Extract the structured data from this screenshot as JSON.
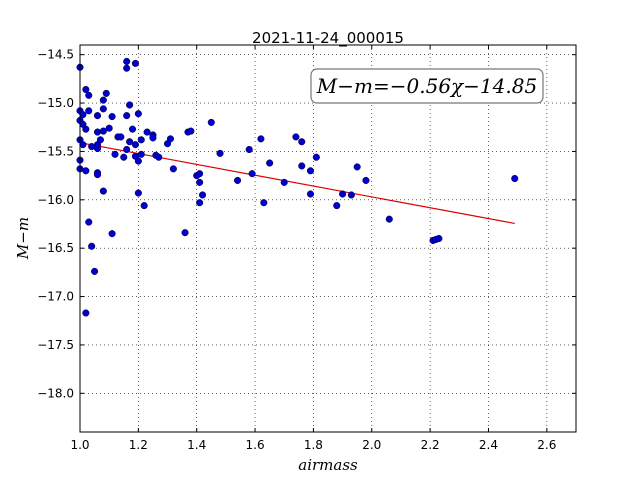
{
  "chart_data": {
    "type": "scatter",
    "title": "2021-11-24_000015",
    "xlabel": "airmass",
    "ylabel": "M−m",
    "xlim": [
      1.0,
      2.7
    ],
    "ylim": [
      -18.4,
      -14.4
    ],
    "y_inverted": true,
    "xticks": [
      "1.0",
      "1.2",
      "1.4",
      "1.6",
      "1.8",
      "2.0",
      "2.2",
      "2.4",
      "2.6"
    ],
    "yticks": [
      "−14.5",
      "−15.0",
      "−15.5",
      "−16.0",
      "−16.5",
      "−17.0",
      "−17.5",
      "−18.0"
    ],
    "grid": true,
    "annotation": "M−m=−0.56χ−14.85",
    "point_color": "#0000cc",
    "fit_color": "#dd0000",
    "fit_line": {
      "slope": -0.56,
      "intercept": -14.85,
      "x_range": [
        1.0,
        2.49
      ]
    },
    "points": [
      [
        1.0,
        -14.63
      ],
      [
        1.0,
        -15.08
      ],
      [
        1.0,
        -15.18
      ],
      [
        1.0,
        -15.38
      ],
      [
        1.0,
        -15.59
      ],
      [
        1.0,
        -15.68
      ],
      [
        1.01,
        -15.12
      ],
      [
        1.01,
        -15.22
      ],
      [
        1.01,
        -15.43
      ],
      [
        1.02,
        -15.7
      ],
      [
        1.02,
        -14.86
      ],
      [
        1.02,
        -15.27
      ],
      [
        1.03,
        -14.92
      ],
      [
        1.03,
        -15.08
      ],
      [
        1.02,
        -17.17
      ],
      [
        1.03,
        -16.23
      ],
      [
        1.04,
        -16.48
      ],
      [
        1.04,
        -15.45
      ],
      [
        1.05,
        -16.74
      ],
      [
        1.06,
        -15.13
      ],
      [
        1.06,
        -15.3
      ],
      [
        1.06,
        -15.43
      ],
      [
        1.06,
        -15.47
      ],
      [
        1.06,
        -15.72
      ],
      [
        1.06,
        -15.74
      ],
      [
        1.07,
        -15.38
      ],
      [
        1.08,
        -14.97
      ],
      [
        1.08,
        -15.06
      ],
      [
        1.08,
        -15.29
      ],
      [
        1.08,
        -15.91
      ],
      [
        1.09,
        -14.9
      ],
      [
        1.1,
        -15.26
      ],
      [
        1.11,
        -15.14
      ],
      [
        1.11,
        -16.35
      ],
      [
        1.12,
        -15.53
      ],
      [
        1.13,
        -15.35
      ],
      [
        1.14,
        -15.35
      ],
      [
        1.15,
        -15.56
      ],
      [
        1.16,
        -14.57
      ],
      [
        1.16,
        -14.64
      ],
      [
        1.16,
        -15.13
      ],
      [
        1.16,
        -15.48
      ],
      [
        1.17,
        -15.02
      ],
      [
        1.17,
        -15.4
      ],
      [
        1.18,
        -15.27
      ],
      [
        1.19,
        -15.43
      ],
      [
        1.19,
        -15.55
      ],
      [
        1.19,
        -14.59
      ],
      [
        1.2,
        -15.11
      ],
      [
        1.2,
        -15.6
      ],
      [
        1.2,
        -15.93
      ],
      [
        1.21,
        -15.53
      ],
      [
        1.21,
        -15.38
      ],
      [
        1.22,
        -16.06
      ],
      [
        1.23,
        -15.3
      ],
      [
        1.25,
        -15.33
      ],
      [
        1.25,
        -15.36
      ],
      [
        1.26,
        -15.54
      ],
      [
        1.27,
        -15.56
      ],
      [
        1.3,
        -15.42
      ],
      [
        1.31,
        -15.37
      ],
      [
        1.32,
        -15.68
      ],
      [
        1.36,
        -16.34
      ],
      [
        1.37,
        -15.3
      ],
      [
        1.38,
        -15.29
      ],
      [
        1.4,
        -15.75
      ],
      [
        1.41,
        -15.73
      ],
      [
        1.41,
        -15.82
      ],
      [
        1.41,
        -16.03
      ],
      [
        1.42,
        -15.95
      ],
      [
        1.45,
        -15.2
      ],
      [
        1.48,
        -15.52
      ],
      [
        1.54,
        -15.8
      ],
      [
        1.58,
        -15.48
      ],
      [
        1.59,
        -15.73
      ],
      [
        1.62,
        -15.37
      ],
      [
        1.63,
        -16.03
      ],
      [
        1.65,
        -15.62
      ],
      [
        1.7,
        -15.82
      ],
      [
        1.74,
        -15.35
      ],
      [
        1.76,
        -15.4
      ],
      [
        1.76,
        -15.65
      ],
      [
        1.79,
        -15.7
      ],
      [
        1.79,
        -15.94
      ],
      [
        1.81,
        -15.56
      ],
      [
        1.88,
        -16.06
      ],
      [
        1.9,
        -15.94
      ],
      [
        1.93,
        -15.95
      ],
      [
        1.95,
        -15.66
      ],
      [
        1.98,
        -15.8
      ],
      [
        2.06,
        -16.2
      ],
      [
        2.21,
        -16.42
      ],
      [
        2.22,
        -16.41
      ],
      [
        2.23,
        -16.4
      ],
      [
        2.49,
        -15.78
      ]
    ]
  }
}
